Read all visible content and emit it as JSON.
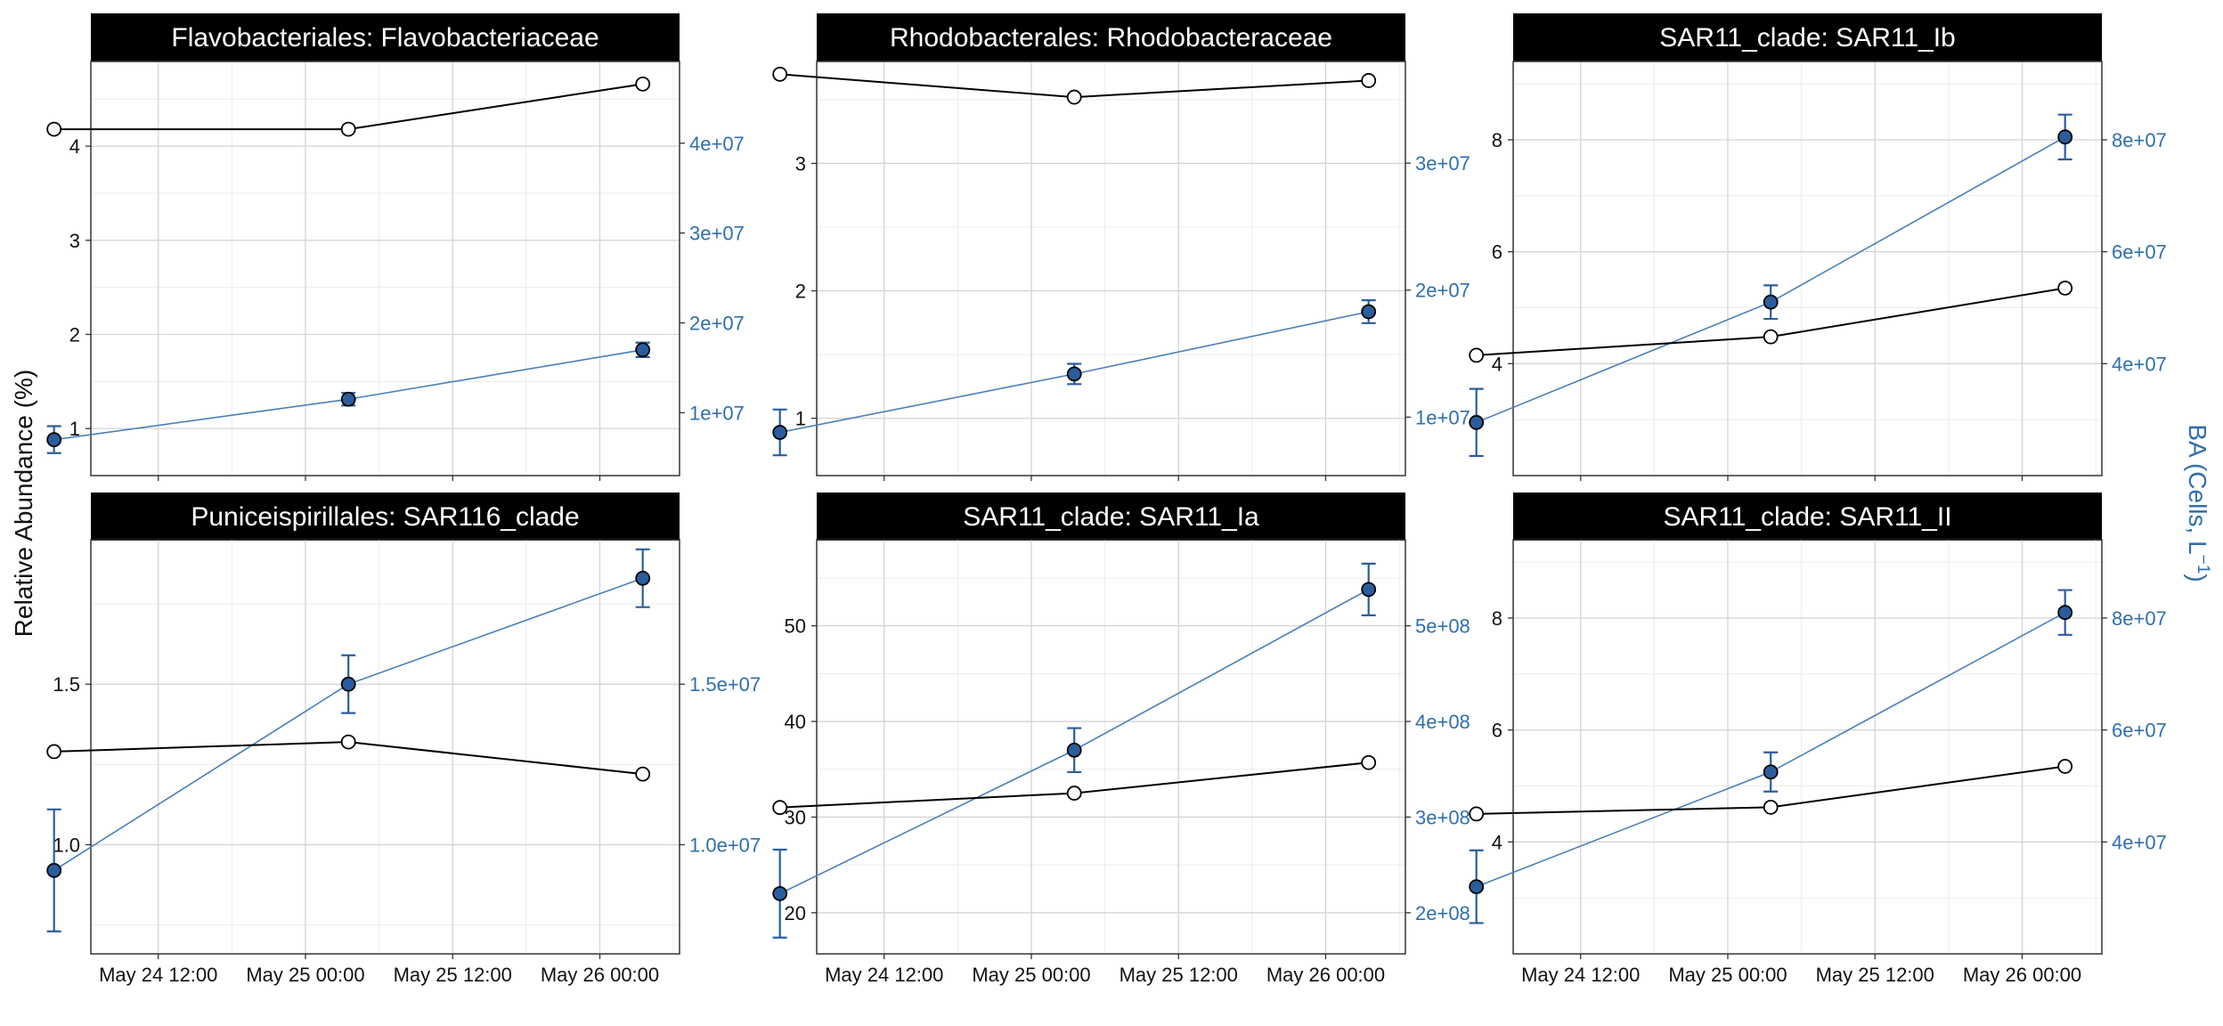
{
  "chart_data": {
    "type": "line",
    "ylabel_left": "Relative Abundance (%)",
    "ylabel_right": "BA (Cells, L",
    "ylabel_right_sup": "−1",
    "ylabel_right_close": ")",
    "x_tick_labels": [
      "May 24 12:00",
      "May 25 00:00",
      "May 25 12:00",
      "May 26 00:00"
    ],
    "x_tick_hours": [
      12,
      24,
      36,
      48
    ],
    "x_range_hours": [
      6.5,
      54.5
    ],
    "x_point_hours": [
      3.5,
      27.5,
      51.5
    ],
    "grid": true,
    "colors": {
      "abundance": "#000000",
      "ba_line": "#4a7fb8",
      "ba_point": "#2b5d9c",
      "ba_text": "#2f6fae",
      "strip": "#000000"
    },
    "facets": [
      {
        "title": "Flavobacteriales: Flavobacteriaceae",
        "left_ylim": [
          0.5,
          4.9
        ],
        "left_ticks": [
          1,
          2,
          3,
          4
        ],
        "left_tick_labels": [
          "1",
          "2",
          "3",
          "4"
        ],
        "right_ylim": [
          3000000.0,
          49100000.0
        ],
        "right_ticks": [
          10000000.0,
          20000000.0,
          30000000.0,
          40000000.0
        ],
        "right_tick_labels": [
          "1e+07",
          "2e+07",
          "3e+07",
          "4e+07"
        ],
        "abundance": [
          4.18,
          4.18,
          4.66
        ],
        "ba": [
          7000000.0,
          11500000.0,
          17000000.0
        ],
        "ba_err": [
          1500000.0,
          700000.0,
          800000.0
        ]
      },
      {
        "title": "Rhodobacterales: Rhodobacteraceae",
        "left_ylim": [
          0.55,
          3.8
        ],
        "left_ticks": [
          1,
          2,
          3
        ],
        "left_tick_labels": [
          "1",
          "2",
          "3"
        ],
        "right_ylim": [
          5400000.0,
          38000000.0
        ],
        "right_ticks": [
          10000000.0,
          20000000.0,
          30000000.0
        ],
        "right_tick_labels": [
          "1e+07",
          "2e+07",
          "3e+07"
        ],
        "abundance": [
          3.7,
          3.52,
          3.65
        ],
        "ba": [
          8800000.0,
          13400000.0,
          18300000.0
        ],
        "ba_err": [
          1800000.0,
          800000.0,
          900000.0
        ]
      },
      {
        "title": "SAR11_clade: SAR11_Ib",
        "left_ylim": [
          2.0,
          9.4
        ],
        "left_ticks": [
          4,
          6,
          8
        ],
        "left_tick_labels": [
          "4",
          "6",
          "8"
        ],
        "right_ylim": [
          20000000.0,
          94000000.0
        ],
        "right_ticks": [
          40000000.0,
          60000000.0,
          80000000.0
        ],
        "right_tick_labels": [
          "4e+07",
          "6e+07",
          "8e+07"
        ],
        "abundance": [
          4.15,
          4.48,
          5.35
        ],
        "ba": [
          29500000.0,
          51000000.0,
          80500000.0
        ],
        "ba_err": [
          6000000.0,
          3000000.0,
          4000000.0
        ]
      },
      {
        "title": "Puniceispirillales: SAR116_clade",
        "left_ylim": [
          0.66,
          1.95
        ],
        "left_ticks": [
          1.0,
          1.5
        ],
        "left_tick_labels": [
          "1.0",
          "1.5"
        ],
        "right_ylim": [
          6600000.0,
          19500000.0
        ],
        "right_ticks": [
          10000000.0,
          15000000.0
        ],
        "right_tick_labels": [
          "1.0e+07",
          "1.5e+07"
        ],
        "abundance": [
          1.29,
          1.32,
          1.22
        ],
        "ba": [
          9200000.0,
          15000000.0,
          18300000.0
        ],
        "ba_err": [
          1900000.0,
          900000.0,
          900000.0
        ]
      },
      {
        "title": "SAR11_clade: SAR11_Ia",
        "left_ylim": [
          15.7,
          59.0
        ],
        "left_ticks": [
          20,
          30,
          40,
          50
        ],
        "left_tick_labels": [
          "20",
          "30",
          "40",
          "50"
        ],
        "right_ylim": [
          157000000.0,
          590000000.0
        ],
        "right_ticks": [
          200000000.0,
          300000000.0,
          400000000.0,
          500000000.0
        ],
        "right_tick_labels": [
          "2e+08",
          "3e+08",
          "4e+08",
          "5e+08"
        ],
        "abundance": [
          31.0,
          32.5,
          35.7
        ],
        "ba": [
          220000000.0,
          370000000.0,
          538000000.0
        ],
        "ba_err": [
          46000000.0,
          23000000.0,
          27000000.0
        ]
      },
      {
        "title": "SAR11_clade: SAR11_II",
        "left_ylim": [
          2.0,
          9.4
        ],
        "left_ticks": [
          4,
          6,
          8
        ],
        "left_tick_labels": [
          "4",
          "6",
          "8"
        ],
        "right_ylim": [
          20000000.0,
          94000000.0
        ],
        "right_ticks": [
          40000000.0,
          60000000.0,
          80000000.0
        ],
        "right_tick_labels": [
          "4e+07",
          "6e+07",
          "8e+07"
        ],
        "abundance": [
          4.5,
          4.62,
          5.35
        ],
        "ba": [
          32000000.0,
          52500000.0,
          81000000.0
        ],
        "ba_err": [
          6500000.0,
          3500000.0,
          4000000.0
        ]
      }
    ]
  }
}
